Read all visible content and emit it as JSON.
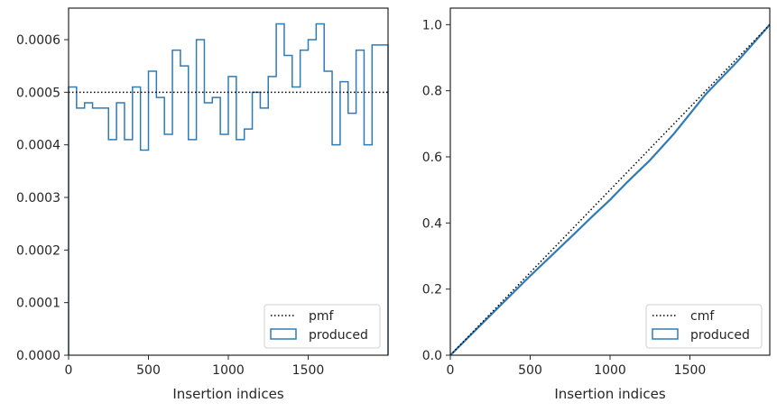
{
  "chart_data": [
    {
      "type": "step-histogram",
      "xlabel": "Insertion indices",
      "xlim": [
        0,
        2000
      ],
      "ylim": [
        0,
        0.00066
      ],
      "x_ticks": [
        0,
        500,
        1000,
        1500
      ],
      "x_tick_labels": [
        "0",
        "500",
        "1000",
        "1500"
      ],
      "y_ticks": [
        0,
        0.0001,
        0.0002,
        0.0003,
        0.0004,
        0.0005,
        0.0006
      ],
      "y_tick_labels": [
        "0.0000",
        "0.0001",
        "0.0002",
        "0.0003",
        "0.0004",
        "0.0005",
        "0.0006"
      ],
      "bin_width": 50,
      "series": [
        {
          "name": "produced",
          "color": "#2e7bb6",
          "style": "step",
          "values": [
            0.00051,
            0.00047,
            0.00048,
            0.00047,
            0.00047,
            0.00041,
            0.00048,
            0.00041,
            0.00051,
            0.00039,
            0.00054,
            0.00049,
            0.00042,
            0.00058,
            0.00055,
            0.00041,
            0.0006,
            0.00048,
            0.00049,
            0.00042,
            0.00053,
            0.00041,
            0.00043,
            0.0005,
            0.00047,
            0.00053,
            0.00063,
            0.00057,
            0.00051,
            0.00058,
            0.0006,
            0.00063,
            0.00054,
            0.0004,
            0.00052,
            0.00046,
            0.00058,
            0.0004,
            0.00059,
            0.00059
          ]
        },
        {
          "name": "pmf",
          "color": "#000000",
          "style": "dotted",
          "value": 0.0005
        }
      ],
      "legend": {
        "placement": "lower-right",
        "entries": [
          "pmf",
          "produced"
        ]
      },
      "grid": false
    },
    {
      "type": "line",
      "xlabel": "Insertion indices",
      "xlim": [
        0,
        2000
      ],
      "ylim": [
        0,
        1.05
      ],
      "x_ticks": [
        0,
        500,
        1000,
        1500
      ],
      "x_tick_labels": [
        "0",
        "500",
        "1000",
        "1500"
      ],
      "y_ticks": [
        0,
        0.2,
        0.4,
        0.6,
        0.8,
        1.0
      ],
      "y_tick_labels": [
        "0.0",
        "0.2",
        "0.4",
        "0.6",
        "0.8",
        "1.0"
      ],
      "series": [
        {
          "name": "produced",
          "color": "#2e7bb6",
          "style": "solid",
          "x": [
            0,
            250,
            500,
            750,
            900,
            1000,
            1100,
            1250,
            1400,
            1600,
            1800,
            2000
          ],
          "y": [
            0,
            0.12,
            0.24,
            0.355,
            0.425,
            0.47,
            0.52,
            0.59,
            0.67,
            0.79,
            0.89,
            1.0
          ]
        },
        {
          "name": "cmf",
          "color": "#000000",
          "style": "dotted",
          "x": [
            0,
            2000
          ],
          "y": [
            0,
            1.0
          ]
        }
      ],
      "legend": {
        "placement": "lower-right",
        "entries": [
          "cmf",
          "produced"
        ]
      },
      "grid": false
    }
  ]
}
